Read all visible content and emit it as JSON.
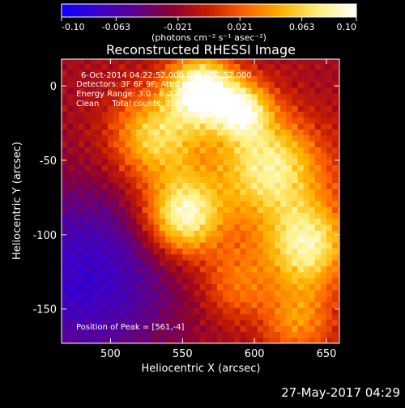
{
  "chart_data": {
    "type": "heatmap",
    "title": "Reconstructed RHESSI Image",
    "xlabel": "Heliocentric X (arcsec)",
    "ylabel": "Heliocentric Y (arcsec)",
    "xlim": [
      466,
      659
    ],
    "ylim": [
      -173,
      18
    ],
    "x_ticks": [
      500,
      550,
      600,
      650
    ],
    "y_ticks": [
      0,
      -50,
      -100,
      -150
    ],
    "colorbar": {
      "ticks": [
        "-0.10",
        "-0.063",
        "-0.021",
        "0.021",
        "0.063",
        "0.10"
      ],
      "tick_values": [
        -0.1,
        -0.063,
        -0.021,
        0.021,
        0.063,
        0.1
      ],
      "range": [
        -0.1,
        0.1
      ],
      "label": "(photons cm⁻² s⁻¹ asec⁻²)",
      "colors": [
        "#0a00ff",
        "#3b00c8",
        "#5a0090",
        "#8c0030",
        "#c81e00",
        "#ff6400",
        "#ffb400",
        "#fff080",
        "#ffffff"
      ]
    },
    "annotations": [
      "6-Oct-2014 04:22:52.000 to 04:32:52.000",
      "Detectors: 3F 6F 9F, Att 0",
      "Energy Range: 3.0 - 6.0 keV",
      "Clean     Total counts: 2.36E+04",
      "Position of Peak = [561,-4]"
    ],
    "sources": [
      {
        "x": 561,
        "y": -4,
        "intensity": 1.0,
        "sigma": 16
      },
      {
        "x": 590,
        "y": -18,
        "intensity": 0.75,
        "sigma": 14
      },
      {
        "x": 548,
        "y": -90,
        "intensity": 0.82,
        "sigma": 18
      },
      {
        "x": 528,
        "y": -35,
        "intensity": 0.55,
        "sigma": 20
      },
      {
        "x": 635,
        "y": -110,
        "intensity": 0.72,
        "sigma": 20
      },
      {
        "x": 612,
        "y": -55,
        "intensity": 0.55,
        "sigma": 22
      },
      {
        "x": 628,
        "y": -160,
        "intensity": 0.45,
        "sigma": 18
      },
      {
        "x": 585,
        "y": -135,
        "intensity": 0.35,
        "sigma": 18
      }
    ]
  },
  "footer": {
    "timestamp": "27-May-2017 04:29"
  }
}
